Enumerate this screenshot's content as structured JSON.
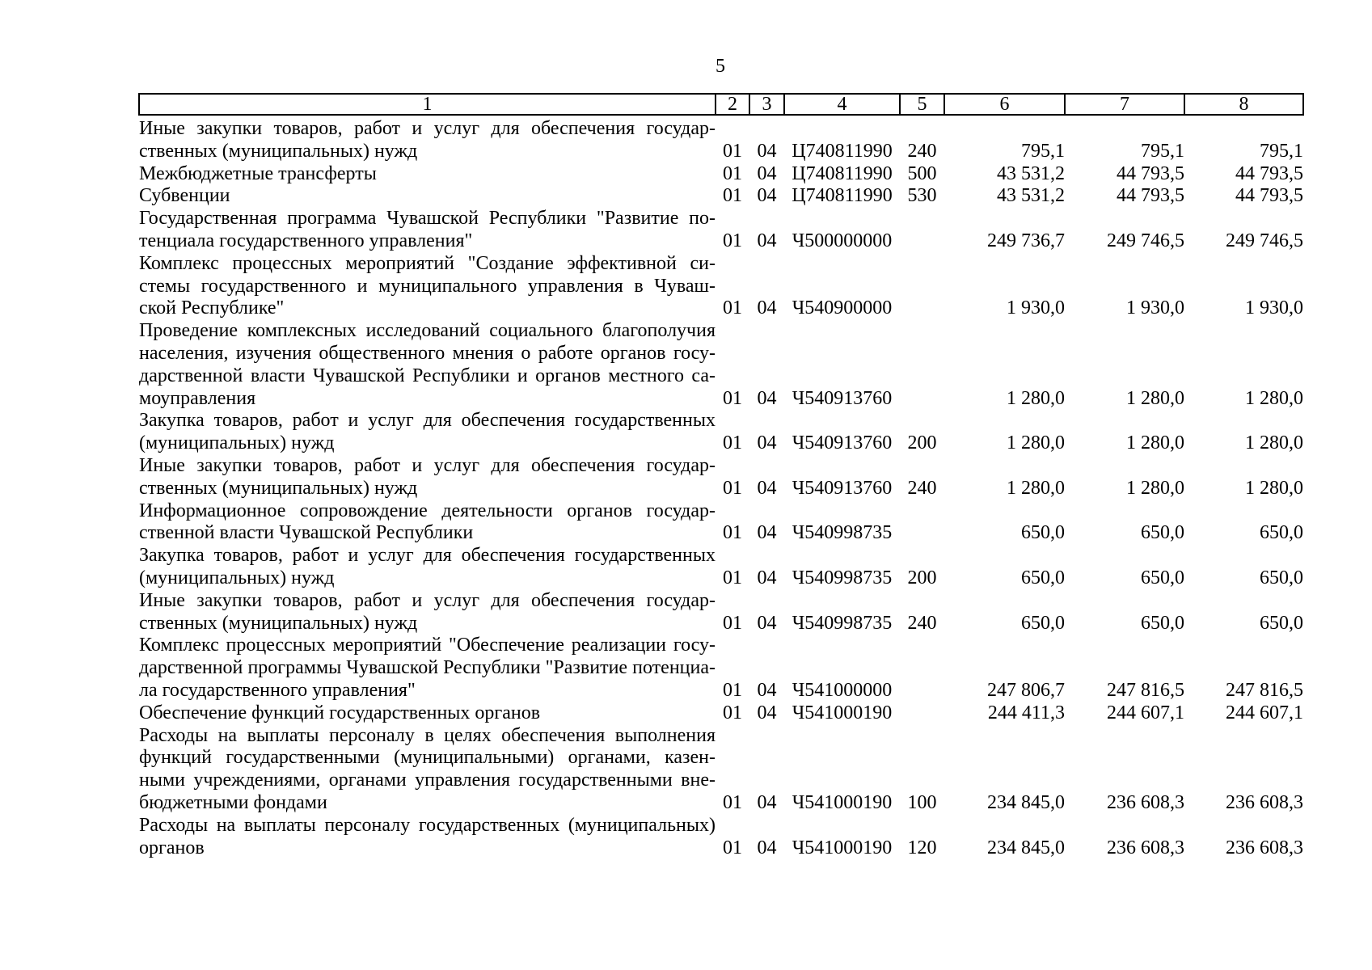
{
  "page": {
    "number": "5"
  },
  "colors": {
    "text": "#000000",
    "border": "#000000",
    "background": "#ffffff"
  },
  "table": {
    "header": [
      "1",
      "2",
      "3",
      "4",
      "5",
      "6",
      "7",
      "8"
    ],
    "rows": [
      {
        "name_lines": [
          "Иные  закупки  товаров,  работ  и  услуг  для  обеспечения  государ-",
          "ственных (муниципальных) нужд"
        ],
        "cols": [
          "01",
          "04",
          "Ц740811990",
          "240",
          "795,1",
          "795,1",
          "795,1"
        ]
      },
      {
        "name_lines": [
          "Межбюджетные трансферты"
        ],
        "cols": [
          "01",
          "04",
          "Ц740811990",
          "500",
          "43 531,2",
          "44 793,5",
          "44 793,5"
        ]
      },
      {
        "name_lines": [
          "Субвенции"
        ],
        "cols": [
          "01",
          "04",
          "Ц740811990",
          "530",
          "43 531,2",
          "44 793,5",
          "44 793,5"
        ]
      },
      {
        "name_lines": [
          "Государственная программа Чувашской Республики \"Развитие по-",
          "тенциала государственного управления\""
        ],
        "cols": [
          "01",
          "04",
          "Ч500000000",
          "",
          "249 736,7",
          "249 746,5",
          "249 746,5"
        ]
      },
      {
        "name_lines": [
          "Комплекс процессных мероприятий \"Создание эффективной си-",
          "стемы государственного и муниципального управления в Чуваш-",
          "ской Республике\""
        ],
        "cols": [
          "01",
          "04",
          "Ч540900000",
          "",
          "1 930,0",
          "1 930,0",
          "1 930,0"
        ]
      },
      {
        "name_lines": [
          "Проведение комплексных исследований социального благополучия",
          "населения, изучения общественного мнения о работе органов госу-",
          "дарственной власти Чувашской Республики и органов местного са-",
          "моуправления"
        ],
        "cols": [
          "01",
          "04",
          "Ч540913760",
          "",
          "1 280,0",
          "1 280,0",
          "1 280,0"
        ]
      },
      {
        "name_lines": [
          "Закупка товаров, работ и услуг для обеспечения государственных",
          "(муниципальных) нужд"
        ],
        "cols": [
          "01",
          "04",
          "Ч540913760",
          "200",
          "1 280,0",
          "1 280,0",
          "1 280,0"
        ]
      },
      {
        "name_lines": [
          "Иные  закупки  товаров,  работ  и  услуг  для  обеспечения  государ-",
          "ственных (муниципальных) нужд"
        ],
        "cols": [
          "01",
          "04",
          "Ч540913760",
          "240",
          "1 280,0",
          "1 280,0",
          "1 280,0"
        ]
      },
      {
        "name_lines": [
          "Информационное  сопровождение  деятельности  органов  государ-",
          "ственной власти Чувашской Республики"
        ],
        "cols": [
          "01",
          "04",
          "Ч540998735",
          "",
          "650,0",
          "650,0",
          "650,0"
        ]
      },
      {
        "name_lines": [
          "Закупка товаров, работ и услуг для обеспечения государственных",
          "(муниципальных) нужд"
        ],
        "cols": [
          "01",
          "04",
          "Ч540998735",
          "200",
          "650,0",
          "650,0",
          "650,0"
        ]
      },
      {
        "name_lines": [
          "Иные  закупки  товаров,  работ  и  услуг  для  обеспечения  государ-",
          "ственных (муниципальных) нужд"
        ],
        "cols": [
          "01",
          "04",
          "Ч540998735",
          "240",
          "650,0",
          "650,0",
          "650,0"
        ]
      },
      {
        "name_lines": [
          "Комплекс процессных мероприятий \"Обеспечение реализации госу-",
          "дарственной программы Чувашской Республики \"Развитие потенциа-",
          "ла государственного управления\""
        ],
        "cols": [
          "01",
          "04",
          "Ч541000000",
          "",
          "247 806,7",
          "247 816,5",
          "247 816,5"
        ]
      },
      {
        "name_lines": [
          "Обеспечение функций государственных органов"
        ],
        "cols": [
          "01",
          "04",
          "Ч541000190",
          "",
          "244 411,3",
          "244 607,1",
          "244 607,1"
        ]
      },
      {
        "name_lines": [
          "Расходы на выплаты персоналу в целях обеспечения выполнения",
          "функций  государственными  (муниципальными)  органами,  казен-",
          "ными учреждениями, органами управления государственными вне-",
          "бюджетными фондами"
        ],
        "cols": [
          "01",
          "04",
          "Ч541000190",
          "100",
          "234 845,0",
          "236 608,3",
          "236 608,3"
        ]
      },
      {
        "name_lines": [
          "Расходы на выплаты персоналу государственных (муниципальных)",
          "органов"
        ],
        "cols": [
          "01",
          "04",
          "Ч541000190",
          "120",
          "234 845,0",
          "236 608,3",
          "236 608,3"
        ]
      }
    ]
  }
}
